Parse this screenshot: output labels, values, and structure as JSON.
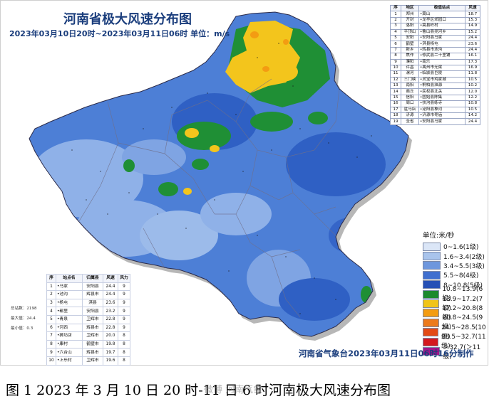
{
  "map": {
    "title": "河南省极大风速分布图",
    "subtitle": "2023年03月10日20时~2023年03月11日06时 单位：m/s",
    "credit": "河南省气象台2023年03月11日06时16分制作",
    "caption": "图 1   2023 年 3 月 10 日 20 时-11 日 6 时河南极大风速分布图",
    "watermark": "微博 河南气象"
  },
  "city_table": {
    "headers": [
      "序",
      "地区",
      "极值站点",
      "风速"
    ],
    "rows": [
      [
        "1",
        "郑州",
        "•嵩山",
        "18.7"
      ],
      [
        "2",
        "开封",
        "•龙亭区郊园口",
        "15.3"
      ],
      [
        "3",
        "洛阳",
        "•嵩县岭村",
        "14.9"
      ],
      [
        "4",
        "平顶山",
        "•鲁山县尧河乡",
        "15.2"
      ],
      [
        "5",
        "安阳",
        "•安阳县马家",
        "24.4"
      ],
      [
        "6",
        "鹤壁",
        "•淇县杨屯",
        "23.6"
      ],
      [
        "7",
        "新乡",
        "•辉县市池沟",
        "24.4"
      ],
      [
        "8",
        "焦作",
        "•修武县二十里铺",
        "16.1"
      ],
      [
        "9",
        "濮阳",
        "•南乐",
        "17.3"
      ],
      [
        "10",
        "许昌",
        "•禹州市无梁",
        "16.9"
      ],
      [
        "11",
        "漯河",
        "•临颍县巨陵",
        "11.8"
      ],
      [
        "12",
        "三门峡",
        "•灵宝市鸡家城",
        "10.5"
      ],
      [
        "13",
        "南阳",
        "•桐柏县淮源",
        "10.2"
      ],
      [
        "14",
        "商丘",
        "•民权县北关",
        "12.0"
      ],
      [
        "15",
        "信阳",
        "•固始县陈集",
        "12.2"
      ],
      [
        "16",
        "周口",
        "•扶沟县练寺",
        "10.8"
      ],
      [
        "17",
        "驻马店",
        "•泌阳县象河",
        "10.5"
      ],
      [
        "18",
        "济源",
        "•济源市枣庙",
        "14.2"
      ],
      [
        "19",
        "全省",
        "•安阳县马家",
        "24.4"
      ]
    ]
  },
  "station_table": {
    "headers": [
      "序",
      "站点名",
      "归属县",
      "风速",
      "风力"
    ],
    "rows": [
      [
        "1",
        "•马家",
        "安阳县",
        "24.4",
        "9"
      ],
      [
        "2",
        "•池沟",
        "辉县市",
        "24.4",
        "9"
      ],
      [
        "3",
        "•杨屯",
        "淇县",
        "23.6",
        "9"
      ],
      [
        "4",
        "•都里",
        "安阳县",
        "23.2",
        "9"
      ],
      [
        "5",
        "•青泉",
        "卫辉市",
        "22.8",
        "9"
      ],
      [
        "6",
        "•河西",
        "辉县市",
        "22.8",
        "9"
      ],
      [
        "7",
        "•狮坊店",
        "卫辉市",
        "20.0",
        "8"
      ],
      [
        "8",
        "•康村",
        "鹤壁市",
        "19.8",
        "8"
      ],
      [
        "9",
        "•六台山",
        "辉县市",
        "19.7",
        "8"
      ],
      [
        "10",
        "•上乐村",
        "卫辉市",
        "19.6",
        "8"
      ]
    ]
  },
  "stats": {
    "total": "总站数：2198",
    "max": "最大值：24.4",
    "min": "最小值：0.3"
  },
  "legend": {
    "title": "单位:米/秒",
    "items": [
      {
        "label": "0~1.6(1级)",
        "color": "#dbe6f7"
      },
      {
        "label": "1.6~3.4(2级)",
        "color": "#a9c4ec"
      },
      {
        "label": "3.4~5.5(3级)",
        "color": "#6e97dd"
      },
      {
        "label": "5.5~8(4级)",
        "color": "#3f6fcf"
      },
      {
        "label": "8~10.8(5级)",
        "color": "#2550b5"
      },
      {
        "label": "10.8~13.9(6级)",
        "color": "#1c8a2e"
      },
      {
        "label": "13.9~17.2(7级)",
        "color": "#f0c419"
      },
      {
        "label": "17.2~20.8(8级)",
        "color": "#f39c12"
      },
      {
        "label": "20.8~24.5(9级)",
        "color": "#ec7a1c"
      },
      {
        "label": "24.5~28.5(10级)",
        "color": "#e34a16"
      },
      {
        "label": "28.5~32.7(11级)",
        "color": "#d4191f"
      },
      {
        "label": "＞32.7(＞11级)",
        "color": "#a0168c"
      }
    ]
  }
}
